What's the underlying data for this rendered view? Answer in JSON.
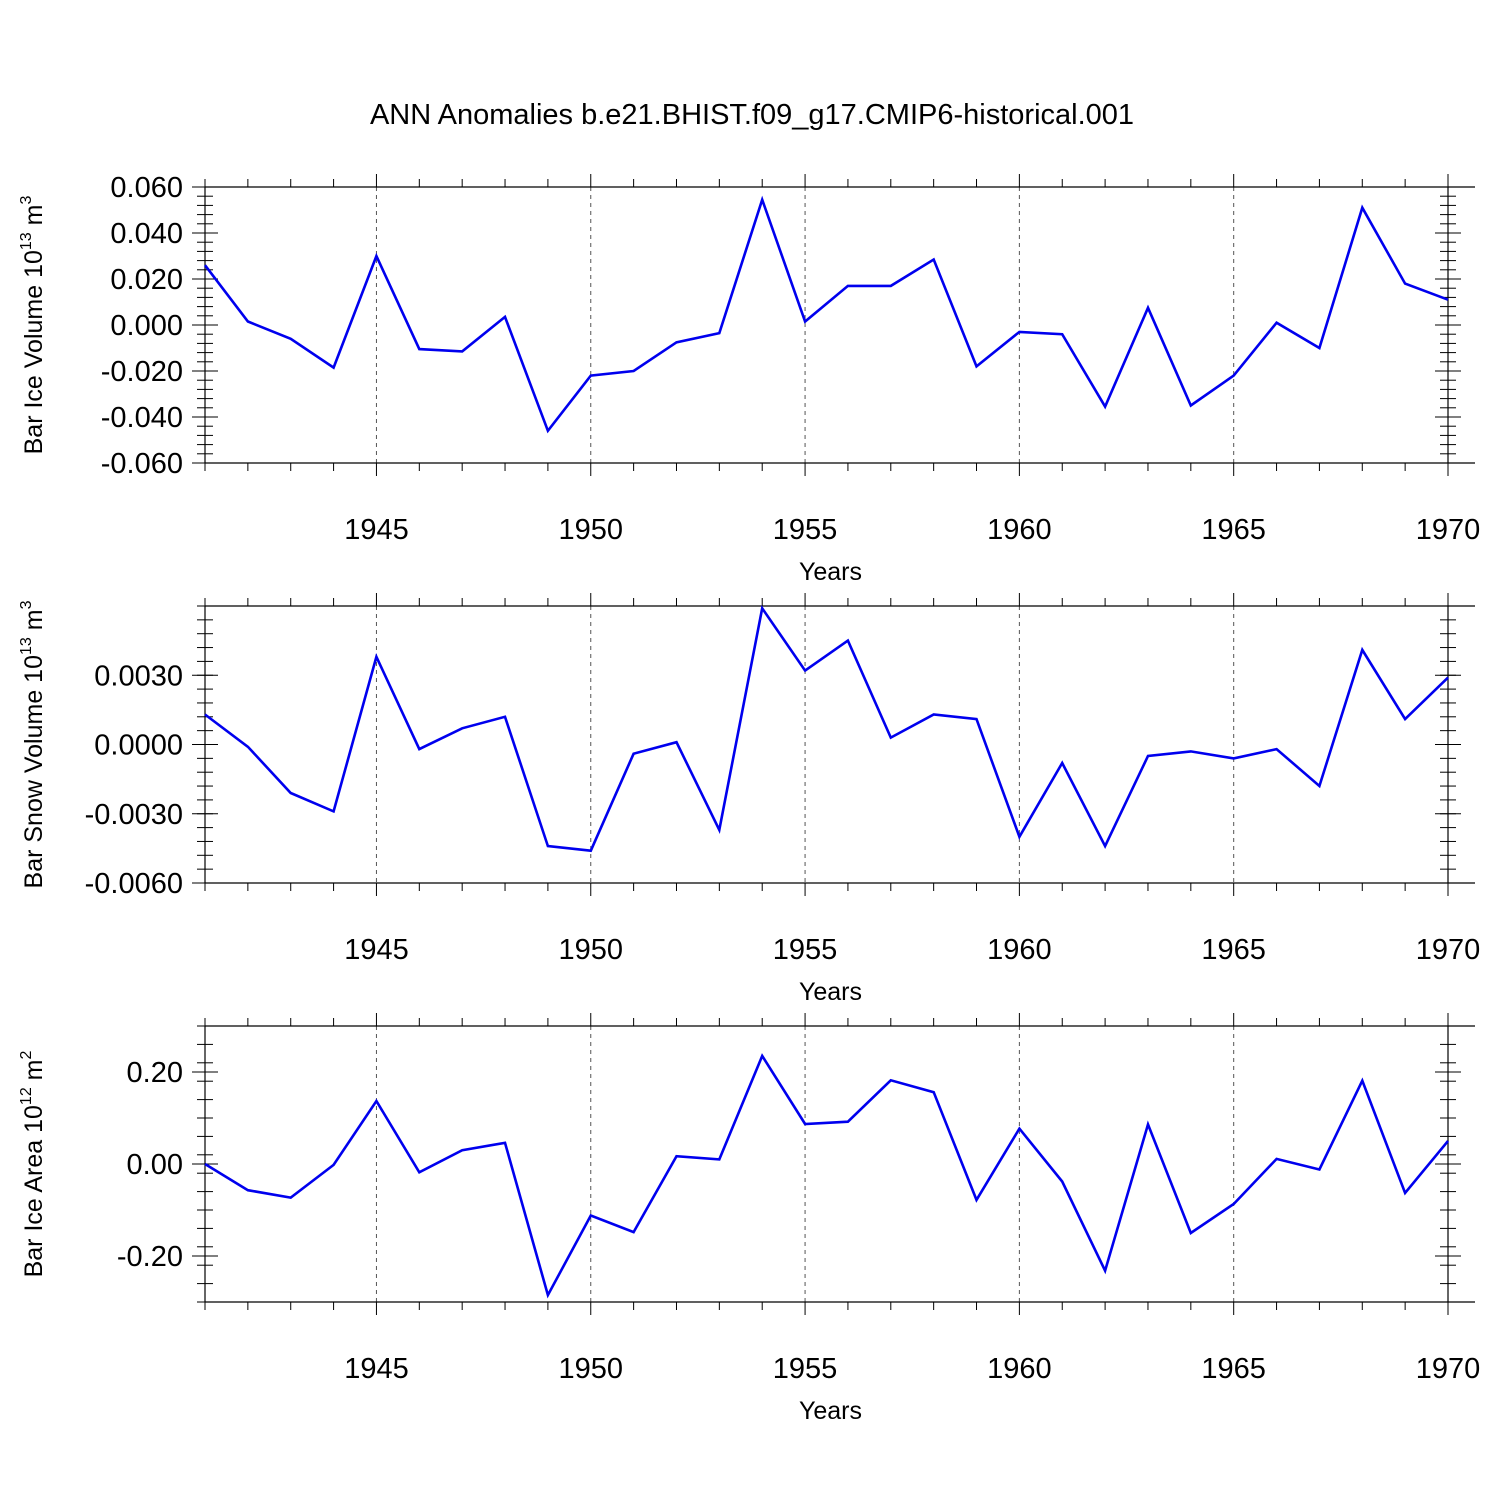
{
  "title": "ANN Anomalies b.e21.BHIST.f09_g17.CMIP6-historical.001",
  "colors": {
    "series": "#0000ee",
    "axis": "#000000",
    "grid": "#555555"
  },
  "chart_data": [
    {
      "type": "line",
      "ylabel": {
        "text": "Bar Ice Volume 10",
        "sup": "13",
        "unit": " m",
        "unit_sup": "3"
      },
      "xlabel": "Years",
      "xlim": [
        1941,
        1970
      ],
      "ylim": [
        -0.06,
        0.06
      ],
      "ymin": -0.06,
      "ymax": 0.06,
      "yticks": [
        -0.06,
        -0.04,
        -0.02,
        0.0,
        0.02,
        0.04,
        0.06
      ],
      "ytick_labels": [
        "-0.060",
        "-0.040",
        "-0.020",
        "0.000",
        "0.020",
        "0.040",
        "0.060"
      ],
      "xticks": [
        1945,
        1950,
        1955,
        1960,
        1965,
        1970
      ],
      "xtick_labels": [
        "1945",
        "1950",
        "1955",
        "1960",
        "1965",
        "1970"
      ],
      "grid_x": true,
      "x": [
        1941,
        1942,
        1943,
        1944,
        1945,
        1946,
        1947,
        1948,
        1949,
        1950,
        1951,
        1952,
        1953,
        1954,
        1955,
        1956,
        1957,
        1958,
        1959,
        1960,
        1961,
        1962,
        1963,
        1964,
        1965,
        1966,
        1967,
        1968,
        1969,
        1970
      ],
      "values": [
        0.026,
        0.0015,
        -0.006,
        -0.0185,
        0.03,
        -0.0105,
        -0.0115,
        0.0035,
        -0.046,
        -0.022,
        -0.02,
        -0.0075,
        -0.0035,
        0.0545,
        0.0015,
        0.017,
        0.017,
        0.0285,
        -0.018,
        -0.003,
        -0.004,
        -0.0355,
        0.0075,
        -0.035,
        -0.022,
        0.001,
        -0.01,
        0.051,
        0.018,
        0.011
      ]
    },
    {
      "type": "line",
      "ylabel": {
        "text": "Bar Snow Volume 10",
        "sup": "13",
        "unit": " m",
        "unit_sup": "3"
      },
      "xlabel": "Years",
      "xlim": [
        1941,
        1970
      ],
      "ylim": [
        -0.006,
        0.006
      ],
      "ymin": -0.006,
      "ymax": 0.006,
      "yticks": [
        -0.006,
        -0.003,
        0.0,
        0.003
      ],
      "ytick_labels": [
        "-0.0060",
        "-0.0030",
        "0.0000",
        "0.0030"
      ],
      "xticks": [
        1945,
        1950,
        1955,
        1960,
        1965,
        1970
      ],
      "xtick_labels": [
        "1945",
        "1950",
        "1955",
        "1960",
        "1965",
        "1970"
      ],
      "grid_x": true,
      "x": [
        1941,
        1942,
        1943,
        1944,
        1945,
        1946,
        1947,
        1948,
        1949,
        1950,
        1951,
        1952,
        1953,
        1954,
        1955,
        1956,
        1957,
        1958,
        1959,
        1960,
        1961,
        1962,
        1963,
        1964,
        1965,
        1966,
        1967,
        1968,
        1969,
        1970
      ],
      "values": [
        0.0013,
        -0.0001,
        -0.0021,
        -0.0029,
        0.0038,
        -0.0002,
        0.0007,
        0.0012,
        -0.0044,
        -0.0046,
        -0.0004,
        0.0001,
        -0.0037,
        0.0059,
        0.0032,
        0.0045,
        0.0003,
        0.0013,
        0.0011,
        -0.004,
        -0.0008,
        -0.0044,
        -0.0005,
        -0.0003,
        -0.0006,
        -0.0002,
        -0.0018,
        0.0041,
        0.0011,
        0.0029
      ]
    },
    {
      "type": "line",
      "ylabel": {
        "text": "Bar Ice Area 10",
        "sup": "12",
        "unit": " m",
        "unit_sup": "2"
      },
      "xlabel": "Years",
      "xlim": [
        1941,
        1970
      ],
      "ylim": [
        -0.3,
        0.3
      ],
      "ymin": -0.3,
      "ymax": 0.3,
      "yticks": [
        -0.2,
        0.0,
        0.2
      ],
      "ytick_labels": [
        "-0.20",
        "0.00",
        "0.20"
      ],
      "xticks": [
        1945,
        1950,
        1955,
        1960,
        1965,
        1970
      ],
      "xtick_labels": [
        "1945",
        "1950",
        "1955",
        "1960",
        "1965",
        "1970"
      ],
      "grid_x": true,
      "x": [
        1941,
        1942,
        1943,
        1944,
        1945,
        1946,
        1947,
        1948,
        1949,
        1950,
        1951,
        1952,
        1953,
        1954,
        1955,
        1956,
        1957,
        1958,
        1959,
        1960,
        1961,
        1962,
        1963,
        1964,
        1965,
        1966,
        1967,
        1968,
        1969,
        1970
      ],
      "values": [
        0.0,
        -0.057,
        -0.073,
        -0.002,
        0.137,
        -0.018,
        0.03,
        0.046,
        -0.285,
        -0.112,
        -0.148,
        0.017,
        0.01,
        0.235,
        0.087,
        0.092,
        0.182,
        0.156,
        -0.078,
        0.077,
        -0.038,
        -0.232,
        0.086,
        -0.15,
        -0.087,
        0.011,
        -0.012,
        0.181,
        -0.063,
        0.05
      ]
    }
  ]
}
